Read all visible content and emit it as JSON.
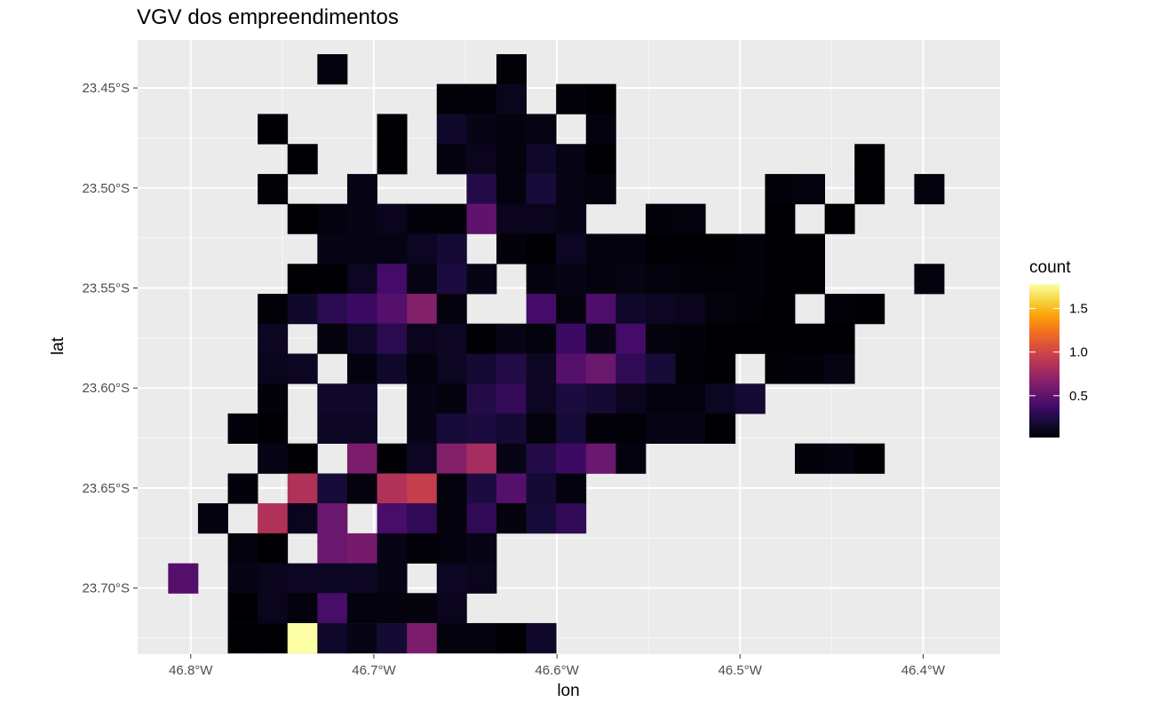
{
  "chart_data": {
    "type": "heatmap",
    "title": "VGV dos empreendimentos",
    "xlabel": "lon",
    "ylabel": "lat",
    "xlim": [
      -46.829,
      -46.358
    ],
    "ylim": [
      -23.733,
      -23.426
    ],
    "x_ticks": [
      {
        "value": -46.8,
        "label": "46.8°W"
      },
      {
        "value": -46.7,
        "label": "46.7°W"
      },
      {
        "value": -46.6,
        "label": "46.6°W"
      },
      {
        "value": -46.5,
        "label": "46.5°W"
      },
      {
        "value": -46.4,
        "label": "46.4°W"
      }
    ],
    "y_ticks": [
      {
        "value": -23.45,
        "label": "23.45°S"
      },
      {
        "value": -23.5,
        "label": "23.50°S"
      },
      {
        "value": -23.55,
        "label": "23.55°S"
      },
      {
        "value": -23.6,
        "label": "23.60°S"
      },
      {
        "value": -23.65,
        "label": "23.65°S"
      },
      {
        "value": -23.7,
        "label": "23.70°S"
      }
    ],
    "grid": true,
    "legend": {
      "title": "count",
      "position": "right",
      "colormap": "inferno",
      "min": 0.02,
      "max": 1.78,
      "ticks": [
        {
          "value": 0.5,
          "label": "0.5"
        },
        {
          "value": 1.0,
          "label": "1.0"
        },
        {
          "value": 1.5,
          "label": "1.5"
        }
      ]
    },
    "bins": {
      "lon_start": -46.8125,
      "lon_step": 0.0163,
      "lat_start": -23.4256,
      "lat_step": 0.01497
    },
    "cells": [
      [
        -46.7227,
        -23.4406,
        0.05
      ],
      [
        -46.6249,
        -23.4406,
        0.03
      ],
      [
        -46.6575,
        -23.4555,
        0.03
      ],
      [
        -46.6412,
        -23.4555,
        0.04
      ],
      [
        -46.6249,
        -23.4555,
        0.1
      ],
      [
        -46.5923,
        -23.4555,
        0.04
      ],
      [
        -46.576,
        -23.4555,
        0.02
      ],
      [
        -46.7553,
        -23.4705,
        0.02
      ],
      [
        -46.6901,
        -23.4705,
        0.02
      ],
      [
        -46.6575,
        -23.4705,
        0.15
      ],
      [
        -46.6412,
        -23.4705,
        0.08
      ],
      [
        -46.6249,
        -23.4705,
        0.06
      ],
      [
        -46.6086,
        -23.4705,
        0.07
      ],
      [
        -46.576,
        -23.4705,
        0.06
      ],
      [
        -46.739,
        -23.4855,
        0.02
      ],
      [
        -46.6901,
        -23.4855,
        0.02
      ],
      [
        -46.6575,
        -23.4855,
        0.06
      ],
      [
        -46.6412,
        -23.4855,
        0.1
      ],
      [
        -46.6249,
        -23.4855,
        0.05
      ],
      [
        -46.6086,
        -23.4855,
        0.15
      ],
      [
        -46.5923,
        -23.4855,
        0.07
      ],
      [
        -46.576,
        -23.4855,
        0.02
      ],
      [
        -46.4293,
        -23.4855,
        0.02
      ],
      [
        -46.7553,
        -23.5005,
        0.03
      ],
      [
        -46.7064,
        -23.5005,
        0.08
      ],
      [
        -46.6412,
        -23.5005,
        0.25
      ],
      [
        -46.6249,
        -23.5005,
        0.06
      ],
      [
        -46.6086,
        -23.5005,
        0.2
      ],
      [
        -46.5923,
        -23.5005,
        0.07
      ],
      [
        -46.576,
        -23.5005,
        0.05
      ],
      [
        -46.4782,
        -23.5005,
        0.04
      ],
      [
        -46.4619,
        -23.5005,
        0.06
      ],
      [
        -46.4293,
        -23.5005,
        0.02
      ],
      [
        -46.3967,
        -23.5005,
        0.05
      ],
      [
        -46.739,
        -23.5154,
        0.02
      ],
      [
        -46.7227,
        -23.5154,
        0.06
      ],
      [
        -46.7064,
        -23.5154,
        0.08
      ],
      [
        -46.6901,
        -23.5154,
        0.1
      ],
      [
        -46.6738,
        -23.5154,
        0.04
      ],
      [
        -46.6575,
        -23.5154,
        0.03
      ],
      [
        -46.6412,
        -23.5154,
        0.5
      ],
      [
        -46.6249,
        -23.5154,
        0.1
      ],
      [
        -46.6086,
        -23.5154,
        0.1
      ],
      [
        -46.5923,
        -23.5154,
        0.08
      ],
      [
        -46.5434,
        -23.5154,
        0.04
      ],
      [
        -46.5271,
        -23.5154,
        0.05
      ],
      [
        -46.4782,
        -23.5154,
        0.02
      ],
      [
        -46.4456,
        -23.5154,
        0.02
      ],
      [
        -46.7227,
        -23.5304,
        0.08
      ],
      [
        -46.7064,
        -23.5304,
        0.07
      ],
      [
        -46.6901,
        -23.5304,
        0.07
      ],
      [
        -46.6738,
        -23.5304,
        0.12
      ],
      [
        -46.6575,
        -23.5304,
        0.18
      ],
      [
        -46.6249,
        -23.5304,
        0.04
      ],
      [
        -46.6086,
        -23.5304,
        0.02
      ],
      [
        -46.5923,
        -23.5304,
        0.12
      ],
      [
        -46.576,
        -23.5304,
        0.05
      ],
      [
        -46.5597,
        -23.5304,
        0.06
      ],
      [
        -46.5434,
        -23.5304,
        0.02
      ],
      [
        -46.5271,
        -23.5304,
        0.02
      ],
      [
        -46.5108,
        -23.5304,
        0.02
      ],
      [
        -46.4945,
        -23.5304,
        0.04
      ],
      [
        -46.4782,
        -23.5304,
        0.02
      ],
      [
        -46.4619,
        -23.5304,
        0.02
      ],
      [
        -46.739,
        -23.5454,
        0.02
      ],
      [
        -46.7227,
        -23.5454,
        0.02
      ],
      [
        -46.7064,
        -23.5454,
        0.12
      ],
      [
        -46.6901,
        -23.5454,
        0.38
      ],
      [
        -46.6738,
        -23.5454,
        0.07
      ],
      [
        -46.6575,
        -23.5454,
        0.22
      ],
      [
        -46.6412,
        -23.5454,
        0.08
      ],
      [
        -46.6086,
        -23.5454,
        0.06
      ],
      [
        -46.5923,
        -23.5454,
        0.08
      ],
      [
        -46.576,
        -23.5454,
        0.06
      ],
      [
        -46.5597,
        -23.5454,
        0.07
      ],
      [
        -46.5434,
        -23.5454,
        0.05
      ],
      [
        -46.5271,
        -23.5454,
        0.04
      ],
      [
        -46.5108,
        -23.5454,
        0.03
      ],
      [
        -46.4945,
        -23.5454,
        0.04
      ],
      [
        -46.4782,
        -23.5454,
        0.02
      ],
      [
        -46.4619,
        -23.5454,
        0.02
      ],
      [
        -46.3967,
        -23.5454,
        0.05
      ],
      [
        -46.7553,
        -23.5604,
        0.03
      ],
      [
        -46.739,
        -23.5604,
        0.15
      ],
      [
        -46.7227,
        -23.5604,
        0.28
      ],
      [
        -46.7064,
        -23.5604,
        0.35
      ],
      [
        -46.6901,
        -23.5604,
        0.45
      ],
      [
        -46.6738,
        -23.5604,
        0.65
      ],
      [
        -46.6575,
        -23.5604,
        0.05
      ],
      [
        -46.6086,
        -23.5604,
        0.38
      ],
      [
        -46.5923,
        -23.5604,
        0.05
      ],
      [
        -46.576,
        -23.5604,
        0.42
      ],
      [
        -46.5597,
        -23.5604,
        0.15
      ],
      [
        -46.5434,
        -23.5604,
        0.12
      ],
      [
        -46.5271,
        -23.5604,
        0.1
      ],
      [
        -46.5108,
        -23.5604,
        0.05
      ],
      [
        -46.4945,
        -23.5604,
        0.03
      ],
      [
        -46.4782,
        -23.5604,
        0.02
      ],
      [
        -46.4456,
        -23.5604,
        0.03
      ],
      [
        -46.4293,
        -23.5604,
        0.02
      ],
      [
        -46.7553,
        -23.5753,
        0.12
      ],
      [
        -46.7227,
        -23.5753,
        0.05
      ],
      [
        -46.7064,
        -23.5753,
        0.15
      ],
      [
        -46.6901,
        -23.5753,
        0.28
      ],
      [
        -46.6738,
        -23.5753,
        0.1
      ],
      [
        -46.6575,
        -23.5753,
        0.12
      ],
      [
        -46.6412,
        -23.5753,
        0.02
      ],
      [
        -46.6249,
        -23.5753,
        0.08
      ],
      [
        -46.6086,
        -23.5753,
        0.05
      ],
      [
        -46.5923,
        -23.5753,
        0.35
      ],
      [
        -46.576,
        -23.5753,
        0.08
      ],
      [
        -46.5597,
        -23.5753,
        0.38
      ],
      [
        -46.5434,
        -23.5753,
        0.05
      ],
      [
        -46.5271,
        -23.5753,
        0.04
      ],
      [
        -46.5108,
        -23.5753,
        0.02
      ],
      [
        -46.4945,
        -23.5753,
        0.02
      ],
      [
        -46.4782,
        -23.5753,
        0.02
      ],
      [
        -46.4619,
        -23.5753,
        0.02
      ],
      [
        -46.4456,
        -23.5753,
        0.02
      ],
      [
        -46.7553,
        -23.5903,
        0.1
      ],
      [
        -46.739,
        -23.5903,
        0.12
      ],
      [
        -46.7064,
        -23.5903,
        0.06
      ],
      [
        -46.6901,
        -23.5903,
        0.15
      ],
      [
        -46.6738,
        -23.5903,
        0.05
      ],
      [
        -46.6575,
        -23.5903,
        0.12
      ],
      [
        -46.6412,
        -23.5903,
        0.18
      ],
      [
        -46.6249,
        -23.5903,
        0.25
      ],
      [
        -46.6086,
        -23.5903,
        0.12
      ],
      [
        -46.5923,
        -23.5903,
        0.45
      ],
      [
        -46.576,
        -23.5903,
        0.55
      ],
      [
        -46.5597,
        -23.5903,
        0.3
      ],
      [
        -46.5434,
        -23.5903,
        0.2
      ],
      [
        -46.5271,
        -23.5903,
        0.03
      ],
      [
        -46.5108,
        -23.5903,
        0.02
      ],
      [
        -46.4782,
        -23.5903,
        0.03
      ],
      [
        -46.4619,
        -23.5903,
        0.04
      ],
      [
        -46.4456,
        -23.5903,
        0.07
      ],
      [
        -46.7553,
        -23.6053,
        0.04
      ],
      [
        -46.7227,
        -23.6053,
        0.15
      ],
      [
        -46.7064,
        -23.6053,
        0.15
      ],
      [
        -46.6738,
        -23.6053,
        0.08
      ],
      [
        -46.6575,
        -23.6053,
        0.05
      ],
      [
        -46.6412,
        -23.6053,
        0.25
      ],
      [
        -46.6249,
        -23.6053,
        0.32
      ],
      [
        -46.6086,
        -23.6053,
        0.12
      ],
      [
        -46.5923,
        -23.6053,
        0.22
      ],
      [
        -46.576,
        -23.6053,
        0.18
      ],
      [
        -46.5597,
        -23.6053,
        0.1
      ],
      [
        -46.5434,
        -23.6053,
        0.05
      ],
      [
        -46.5271,
        -23.6053,
        0.05
      ],
      [
        -46.5108,
        -23.6053,
        0.12
      ],
      [
        -46.4945,
        -23.6053,
        0.18
      ],
      [
        -46.7716,
        -23.6202,
        0.04
      ],
      [
        -46.7553,
        -23.6202,
        0.02
      ],
      [
        -46.7227,
        -23.6202,
        0.12
      ],
      [
        -46.7064,
        -23.6202,
        0.12
      ],
      [
        -46.6738,
        -23.6202,
        0.08
      ],
      [
        -46.6575,
        -23.6202,
        0.2
      ],
      [
        -46.6412,
        -23.6202,
        0.22
      ],
      [
        -46.6249,
        -23.6202,
        0.18
      ],
      [
        -46.6086,
        -23.6202,
        0.05
      ],
      [
        -46.5923,
        -23.6202,
        0.2
      ],
      [
        -46.576,
        -23.6202,
        0.04
      ],
      [
        -46.5597,
        -23.6202,
        0.03
      ],
      [
        -46.5434,
        -23.6202,
        0.08
      ],
      [
        -46.5271,
        -23.6202,
        0.08
      ],
      [
        -46.5108,
        -23.6202,
        0.02
      ],
      [
        -46.7553,
        -23.6352,
        0.08
      ],
      [
        -46.739,
        -23.6352,
        0.02
      ],
      [
        -46.7064,
        -23.6352,
        0.62
      ],
      [
        -46.6901,
        -23.6352,
        0.02
      ],
      [
        -46.6738,
        -23.6352,
        0.12
      ],
      [
        -46.6575,
        -23.6352,
        0.65
      ],
      [
        -46.6412,
        -23.6352,
        0.8
      ],
      [
        -46.6249,
        -23.6352,
        0.08
      ],
      [
        -46.6086,
        -23.6352,
        0.25
      ],
      [
        -46.5923,
        -23.6352,
        0.35
      ],
      [
        -46.576,
        -23.6352,
        0.55
      ],
      [
        -46.5597,
        -23.6352,
        0.06
      ],
      [
        -46.4619,
        -23.6352,
        0.04
      ],
      [
        -46.4456,
        -23.6352,
        0.06
      ],
      [
        -46.4293,
        -23.6352,
        0.02
      ],
      [
        -46.7716,
        -23.6502,
        0.04
      ],
      [
        -46.739,
        -23.6502,
        0.85
      ],
      [
        -46.7227,
        -23.6502,
        0.2
      ],
      [
        -46.7064,
        -23.6502,
        0.05
      ],
      [
        -46.6901,
        -23.6502,
        0.85
      ],
      [
        -46.6738,
        -23.6502,
        0.95
      ],
      [
        -46.6575,
        -23.6502,
        0.05
      ],
      [
        -46.6412,
        -23.6502,
        0.22
      ],
      [
        -46.6249,
        -23.6502,
        0.45
      ],
      [
        -46.6086,
        -23.6502,
        0.18
      ],
      [
        -46.5923,
        -23.6502,
        0.05
      ],
      [
        -46.7879,
        -23.6651,
        0.06
      ],
      [
        -46.7553,
        -23.6651,
        0.85
      ],
      [
        -46.739,
        -23.6651,
        0.1
      ],
      [
        -46.7227,
        -23.6651,
        0.55
      ],
      [
        -46.6901,
        -23.6651,
        0.4
      ],
      [
        -46.6738,
        -23.6651,
        0.3
      ],
      [
        -46.6575,
        -23.6651,
        0.05
      ],
      [
        -46.6412,
        -23.6651,
        0.3
      ],
      [
        -46.6249,
        -23.6651,
        0.05
      ],
      [
        -46.6086,
        -23.6651,
        0.2
      ],
      [
        -46.5923,
        -23.6651,
        0.3
      ],
      [
        -46.7716,
        -23.6801,
        0.05
      ],
      [
        -46.7553,
        -23.6801,
        0.02
      ],
      [
        -46.7227,
        -23.6801,
        0.55
      ],
      [
        -46.7064,
        -23.6801,
        0.6
      ],
      [
        -46.6901,
        -23.6801,
        0.08
      ],
      [
        -46.6738,
        -23.6801,
        0.04
      ],
      [
        -46.6575,
        -23.6801,
        0.05
      ],
      [
        -46.6412,
        -23.6801,
        0.08
      ],
      [
        -46.8042,
        -23.6951,
        0.45
      ],
      [
        -46.7716,
        -23.6951,
        0.08
      ],
      [
        -46.7553,
        -23.6951,
        0.1
      ],
      [
        -46.739,
        -23.6951,
        0.12
      ],
      [
        -46.7227,
        -23.6951,
        0.12
      ],
      [
        -46.7064,
        -23.6951,
        0.12
      ],
      [
        -46.6901,
        -23.6951,
        0.08
      ],
      [
        -46.6575,
        -23.6951,
        0.12
      ],
      [
        -46.6412,
        -23.6951,
        0.1
      ],
      [
        -46.7716,
        -23.71,
        0.02
      ],
      [
        -46.7553,
        -23.71,
        0.1
      ],
      [
        -46.739,
        -23.71,
        0.05
      ],
      [
        -46.7227,
        -23.71,
        0.4
      ],
      [
        -46.7064,
        -23.71,
        0.05
      ],
      [
        -46.6901,
        -23.71,
        0.05
      ],
      [
        -46.6738,
        -23.71,
        0.05
      ],
      [
        -46.6575,
        -23.71,
        0.1
      ],
      [
        -46.7716,
        -23.725,
        0.02
      ],
      [
        -46.7553,
        -23.725,
        0.02
      ],
      [
        -46.739,
        -23.725,
        1.78
      ],
      [
        -46.7227,
        -23.725,
        0.15
      ],
      [
        -46.7064,
        -23.725,
        0.08
      ],
      [
        -46.6901,
        -23.725,
        0.18
      ],
      [
        -46.6738,
        -23.725,
        0.62
      ],
      [
        -46.6575,
        -23.725,
        0.05
      ],
      [
        -46.6412,
        -23.725,
        0.05
      ],
      [
        -46.6249,
        -23.725,
        0.02
      ],
      [
        -46.6086,
        -23.725,
        0.15
      ]
    ]
  }
}
